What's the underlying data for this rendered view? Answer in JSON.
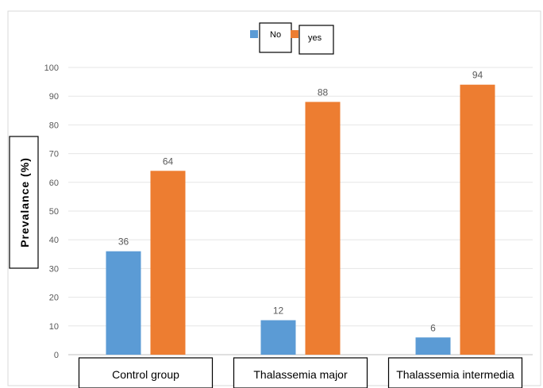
{
  "chart_data": {
    "type": "bar",
    "title": "",
    "xlabel": "",
    "ylabel": "Prevalance (%)",
    "categories": [
      "Control group",
      "Thalassemia major",
      "Thalassemia intermedia"
    ],
    "series": [
      {
        "name": "No",
        "values": [
          36,
          12,
          6
        ],
        "color": "#5B9BD5"
      },
      {
        "name": "yes",
        "values": [
          64,
          88,
          94
        ],
        "color": "#ED7D31"
      }
    ],
    "ylim": [
      0,
      100
    ],
    "yticks": [
      0,
      10,
      20,
      30,
      40,
      50,
      60,
      70,
      80,
      90,
      100
    ],
    "grid": true,
    "legend": "top-center"
  }
}
